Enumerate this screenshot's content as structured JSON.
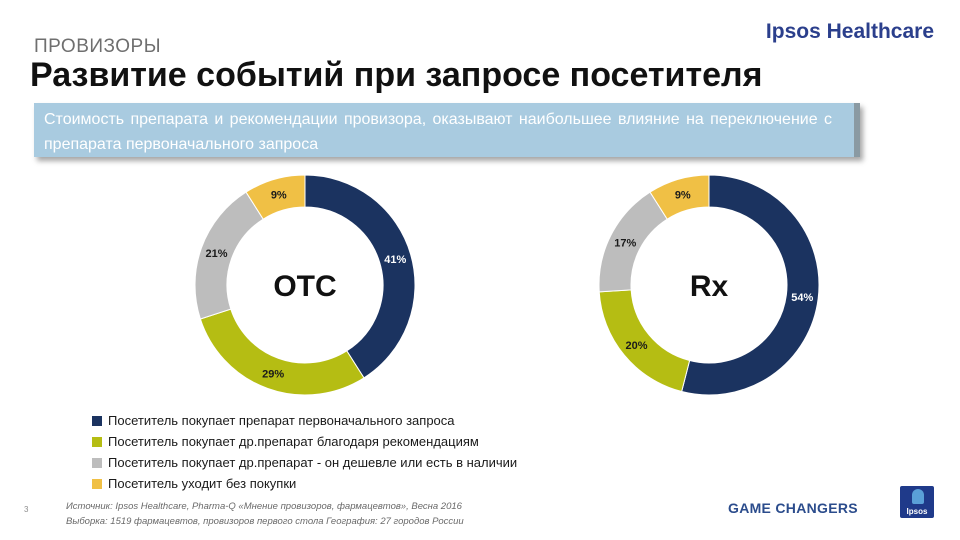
{
  "header": {
    "section": "ПРОВИЗОРЫ",
    "title": "Развитие событий при запросе посетителя",
    "brand": "Ipsos Healthcare"
  },
  "callout": {
    "text": "Стоимость препарата и рекомендации провизора, оказывают наибольшее влияние на переключение с препарата первоначального запроса"
  },
  "chart_data": [
    {
      "type": "pie",
      "variant": "donut",
      "center_label": "OTC",
      "categories": [
        "Посетитель покупает препарат первоначального запроса",
        "Посетитель покупает др.препарат благодаря рекомендациям",
        "Посетитель покупает др.препарат - он дешевле или есть в наличии",
        "Посетитель уходит без покупки"
      ],
      "values": [
        41,
        29,
        21,
        9
      ],
      "value_labels": [
        "41%",
        "29%",
        "21%",
        "9%"
      ],
      "colors": [
        "#1b3360",
        "#b5bd13",
        "#bdbdbd",
        "#f0c045"
      ]
    },
    {
      "type": "pie",
      "variant": "donut",
      "center_label": "Rx",
      "categories": [
        "Посетитель покупает препарат первоначального запроса",
        "Посетитель покупает др.препарат благодаря рекомендациям",
        "Посетитель покупает др.препарат - он дешевле или есть в наличии",
        "Посетитель уходит без покупки"
      ],
      "values": [
        54,
        20,
        17,
        9
      ],
      "value_labels": [
        "54%",
        "20%",
        "17%",
        "9%"
      ],
      "colors": [
        "#1b3360",
        "#b5bd13",
        "#bdbdbd",
        "#f0c045"
      ]
    }
  ],
  "legend": [
    {
      "label": "Посетитель покупает препарат первоначального запроса",
      "color": "#1b3360"
    },
    {
      "label": "Посетитель покупает др.препарат благодаря рекомендациям",
      "color": "#b5bd13"
    },
    {
      "label": "Посетитель покупает др.препарат - он дешевле или есть в наличии",
      "color": "#bdbdbd"
    },
    {
      "label": "Посетитель уходит без покупки",
      "color": "#f0c045"
    }
  ],
  "footer": {
    "page_number": "3",
    "source": "Источник: Ipsos Healthcare, Pharma-Q «Мнение провизоров, фармацевтов», Весна 2016",
    "sample": "Выборка:  1519 фармацевтов, провизоров первого стола  География: 27 городов России",
    "tagline": "GAME CHANGERS",
    "logo_text": "Ipsos"
  }
}
